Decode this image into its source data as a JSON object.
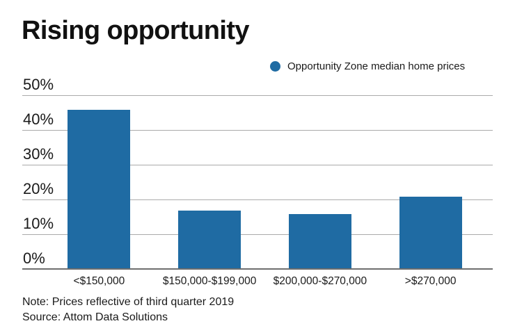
{
  "title": "Rising opportunity",
  "legend": {
    "label": "Opportunity Zone median home prices",
    "marker_color": "#1f6ba3"
  },
  "chart_data": {
    "type": "bar",
    "title": "Rising opportunity",
    "series_name": "Opportunity Zone median home prices",
    "categories": [
      "<$150,000",
      "$150,000-$199,000",
      "$200,000-$270,000",
      ">$270,000"
    ],
    "values": [
      46,
      17,
      16,
      21
    ],
    "unit": "percent",
    "xlabel": "",
    "ylabel": "",
    "ylim": [
      0,
      50
    ],
    "yticks": [
      0,
      10,
      20,
      30,
      40,
      50
    ],
    "ytick_labels": [
      "0%",
      "10%",
      "20%",
      "30%",
      "40%",
      "50%"
    ],
    "grid": "horizontal",
    "legend_position": "top-right",
    "bar_color": "#1f6ba3",
    "gridline_color": "#aaaaaa",
    "axis_color": "#6e6e6e"
  },
  "footer": {
    "note": "Note: Prices reflective of third quarter 2019",
    "source": "Source: Attom Data Solutions"
  }
}
